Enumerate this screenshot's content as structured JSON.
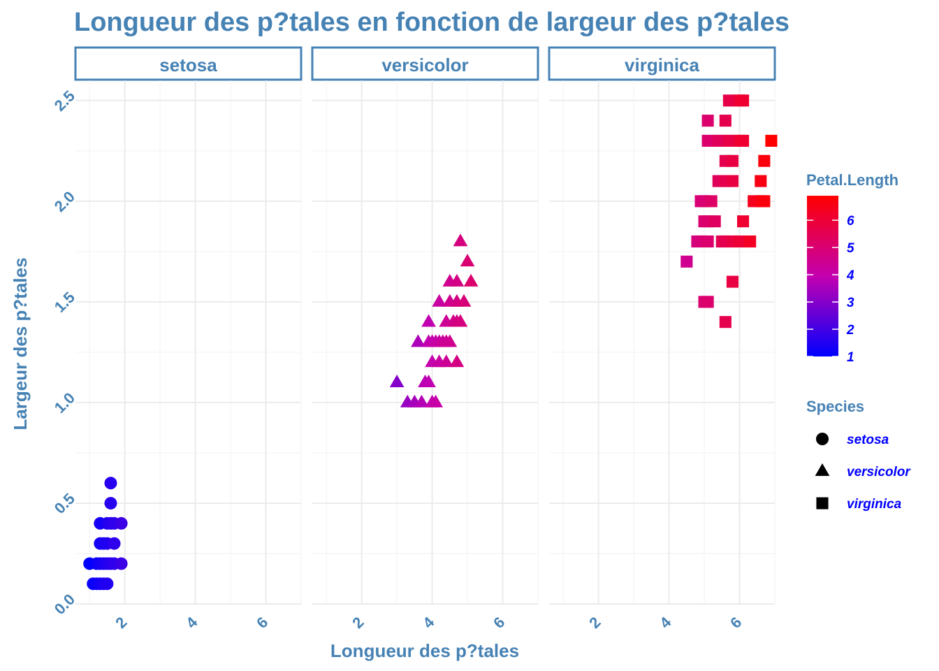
{
  "chart_data": {
    "type": "scatter",
    "title": "Longueur des p?tales en fonction de largeur des p?tales",
    "xlabel": "Longueur des p?tales",
    "ylabel": "Largeur des p?tales",
    "xlim": [
      0.6,
      7.0
    ],
    "ylim": [
      0.0,
      2.6
    ],
    "x_ticks": [
      2,
      4,
      6
    ],
    "y_ticks": [
      0.0,
      0.5,
      1.0,
      1.5,
      2.0,
      2.5
    ],
    "x_tick_labels": [
      "2",
      "4",
      "6"
    ],
    "y_tick_labels": [
      "0.0",
      "0.5",
      "1.0",
      "1.5",
      "2.0",
      "2.5"
    ],
    "grid": true,
    "facets": [
      "setosa",
      "versicolor",
      "virginica"
    ],
    "colors": {
      "low": "#0000FF",
      "high": "#FF0000",
      "accent": "#4682B4"
    },
    "color_legend": {
      "title": "Petal.Length",
      "range": [
        1.0,
        6.9
      ],
      "breaks": [
        1,
        2,
        3,
        4,
        5,
        6
      ],
      "labels": [
        "1",
        "2",
        "3",
        "4",
        "5",
        "6"
      ],
      "placement": "right"
    },
    "shape_legend": {
      "title": "Species",
      "items": [
        {
          "label": "setosa",
          "shape": "circle"
        },
        {
          "label": "versicolor",
          "shape": "triangle"
        },
        {
          "label": "virginica",
          "shape": "square"
        }
      ],
      "placement": "right"
    },
    "series": [
      {
        "name": "setosa",
        "shape": "circle",
        "points": [
          [
            1.0,
            0.2
          ],
          [
            1.1,
            0.1
          ],
          [
            1.2,
            0.2
          ],
          [
            1.3,
            0.2
          ],
          [
            1.4,
            0.2
          ],
          [
            1.5,
            0.2
          ],
          [
            1.6,
            0.2
          ],
          [
            1.7,
            0.2
          ],
          [
            1.9,
            0.2
          ],
          [
            1.2,
            0.1
          ],
          [
            1.3,
            0.1
          ],
          [
            1.4,
            0.1
          ],
          [
            1.5,
            0.1
          ],
          [
            1.3,
            0.3
          ],
          [
            1.4,
            0.3
          ],
          [
            1.5,
            0.3
          ],
          [
            1.7,
            0.3
          ],
          [
            1.3,
            0.4
          ],
          [
            1.5,
            0.4
          ],
          [
            1.6,
            0.4
          ],
          [
            1.7,
            0.4
          ],
          [
            1.9,
            0.4
          ],
          [
            1.6,
            0.5
          ],
          [
            1.6,
            0.6
          ]
        ]
      },
      {
        "name": "versicolor",
        "shape": "triangle",
        "points": [
          [
            3.0,
            1.1
          ],
          [
            3.8,
            1.1
          ],
          [
            3.9,
            1.1
          ],
          [
            3.3,
            1.0
          ],
          [
            3.5,
            1.0
          ],
          [
            3.7,
            1.0
          ],
          [
            4.0,
            1.0
          ],
          [
            4.1,
            1.0
          ],
          [
            4.0,
            1.2
          ],
          [
            4.2,
            1.2
          ],
          [
            4.4,
            1.2
          ],
          [
            4.7,
            1.2
          ],
          [
            3.6,
            1.3
          ],
          [
            3.9,
            1.3
          ],
          [
            4.0,
            1.3
          ],
          [
            4.1,
            1.3
          ],
          [
            4.2,
            1.3
          ],
          [
            4.3,
            1.3
          ],
          [
            4.4,
            1.3
          ],
          [
            4.5,
            1.3
          ],
          [
            3.9,
            1.4
          ],
          [
            4.4,
            1.4
          ],
          [
            4.6,
            1.4
          ],
          [
            4.7,
            1.4
          ],
          [
            4.8,
            1.4
          ],
          [
            4.2,
            1.5
          ],
          [
            4.5,
            1.5
          ],
          [
            4.7,
            1.5
          ],
          [
            4.9,
            1.5
          ],
          [
            4.5,
            1.6
          ],
          [
            4.7,
            1.6
          ],
          [
            5.1,
            1.6
          ],
          [
            5.0,
            1.7
          ],
          [
            4.8,
            1.8
          ]
        ]
      },
      {
        "name": "virginica",
        "shape": "square",
        "points": [
          [
            5.6,
            1.4
          ],
          [
            5.0,
            1.5
          ],
          [
            5.1,
            1.5
          ],
          [
            5.8,
            1.6
          ],
          [
            4.5,
            1.7
          ],
          [
            4.8,
            1.8
          ],
          [
            4.9,
            1.8
          ],
          [
            5.1,
            1.8
          ],
          [
            5.5,
            1.8
          ],
          [
            5.6,
            1.8
          ],
          [
            5.8,
            1.8
          ],
          [
            6.0,
            1.8
          ],
          [
            6.3,
            1.8
          ],
          [
            5.0,
            1.9
          ],
          [
            5.1,
            1.9
          ],
          [
            5.3,
            1.9
          ],
          [
            6.1,
            1.9
          ],
          [
            4.9,
            2.0
          ],
          [
            5.0,
            2.0
          ],
          [
            5.2,
            2.0
          ],
          [
            6.4,
            2.0
          ],
          [
            6.6,
            2.0
          ],
          [
            6.7,
            2.0
          ],
          [
            5.4,
            2.1
          ],
          [
            5.6,
            2.1
          ],
          [
            5.8,
            2.1
          ],
          [
            6.6,
            2.1
          ],
          [
            5.6,
            2.2
          ],
          [
            5.8,
            2.2
          ],
          [
            6.7,
            2.2
          ],
          [
            5.1,
            2.3
          ],
          [
            5.4,
            2.3
          ],
          [
            5.7,
            2.3
          ],
          [
            6.0,
            2.3
          ],
          [
            6.1,
            2.3
          ],
          [
            6.9,
            2.3
          ],
          [
            5.1,
            2.4
          ],
          [
            5.6,
            2.4
          ],
          [
            5.7,
            2.5
          ],
          [
            6.0,
            2.5
          ],
          [
            6.1,
            2.5
          ]
        ]
      }
    ]
  }
}
